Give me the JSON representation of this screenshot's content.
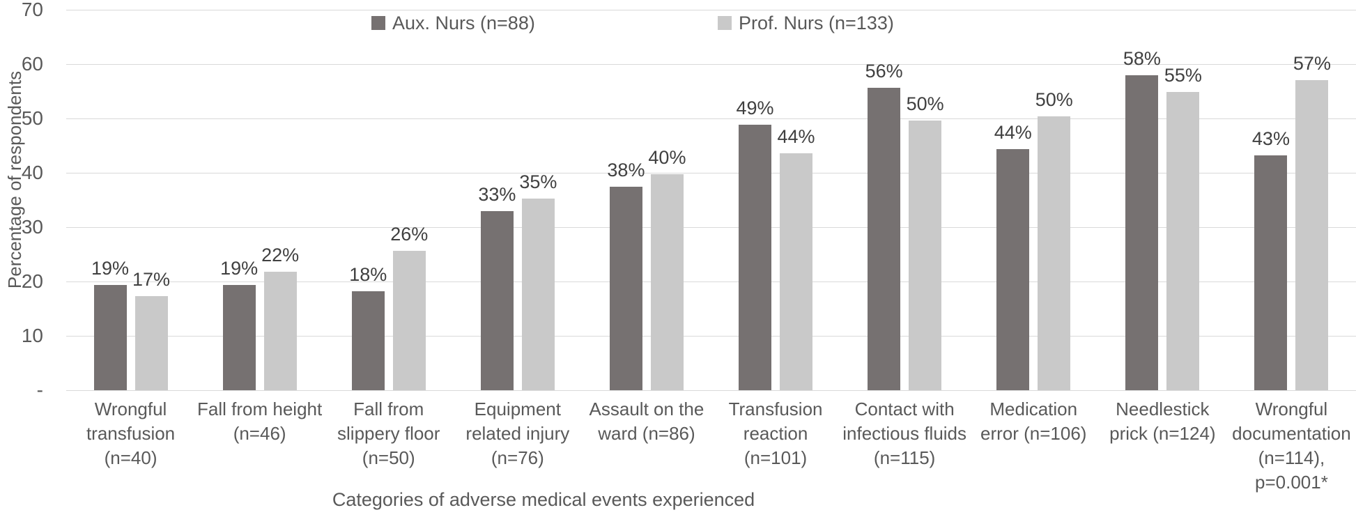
{
  "chart_data": {
    "type": "bar",
    "title": "",
    "xlabel": "Categories of adverse medical events experienced",
    "ylabel": "Percentage of respondents",
    "ylim": [
      0,
      70
    ],
    "yticks": [
      {
        "label": "-",
        "value": 0
      },
      {
        "label": "10",
        "value": 10
      },
      {
        "label": "20",
        "value": 20
      },
      {
        "label": "30",
        "value": 30
      },
      {
        "label": "40",
        "value": 40
      },
      {
        "label": "50",
        "value": 50
      },
      {
        "label": "60",
        "value": 60
      },
      {
        "label": "70",
        "value": 70
      }
    ],
    "grid": true,
    "legend_position": "top-inside",
    "categories": [
      "Wrongful\ntransfusion\n(n=40)",
      "Fall from height\n(n=46)",
      "Fall from\nslippery floor\n(n=50)",
      "Equipment\nrelated injury\n(n=76)",
      "Assault on the\nward (n=86)",
      "Transfusion\nreaction\n(n=101)",
      "Contact with\ninfectious fluids\n(n=115)",
      "Medication\nerror (n=106)",
      "Needlestick\nprick (n=124)",
      "Wrongful\ndocumentation\n(n=114),\np=0.001*"
    ],
    "series": [
      {
        "name": "Aux. Nurs (n=88)",
        "color": "#767171",
        "values": [
          19.3,
          19.3,
          18.2,
          33.0,
          37.5,
          48.9,
          55.7,
          44.3,
          58.0,
          43.2
        ],
        "labels": [
          "19%",
          "19%",
          "18%",
          "33%",
          "38%",
          "49%",
          "56%",
          "44%",
          "58%",
          "43%"
        ]
      },
      {
        "name": "Prof. Nurs (n=133)",
        "color": "#c9c9c9",
        "values": [
          17.3,
          21.8,
          25.6,
          35.3,
          39.8,
          43.6,
          49.6,
          50.4,
          54.9,
          57.1
        ],
        "labels": [
          "17%",
          "22%",
          "26%",
          "35%",
          "40%",
          "44%",
          "50%",
          "50%",
          "55%",
          "57%"
        ]
      }
    ],
    "colors": {
      "grid": "#d9d9d9",
      "axis_text": "#595959",
      "value_label_text": "#404040"
    }
  }
}
